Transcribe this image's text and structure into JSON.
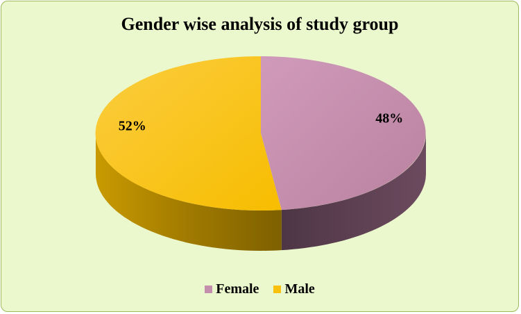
{
  "chart_data": {
    "type": "pie",
    "title": "Gender wise analysis  of study group",
    "categories": [
      "Female",
      "Male"
    ],
    "values": [
      48,
      52
    ],
    "labels": [
      "48%",
      "52%"
    ],
    "colors": {
      "Female": "#c48fad",
      "Male": "#f9c10e",
      "background": "#ebf8cd",
      "border": "#9bbb59"
    },
    "legend_position": "bottom",
    "style": "3d"
  }
}
